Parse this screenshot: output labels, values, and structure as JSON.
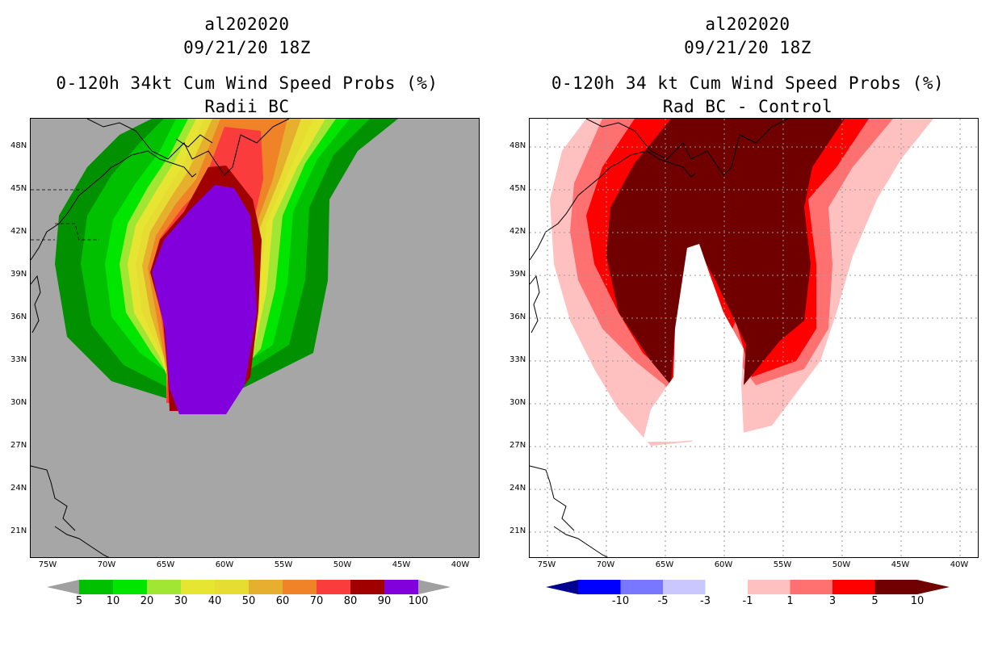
{
  "left_panel": {
    "storm_id": "al202020",
    "datetime": "09/21/20 18Z",
    "title": "0-120h 34kt Cum Wind Speed Probs (%)",
    "subtitle": "Radii BC",
    "colorbar": {
      "labels": [
        "5",
        "10",
        "20",
        "30",
        "40",
        "50",
        "60",
        "70",
        "80",
        "90",
        "100"
      ],
      "colors": [
        "#009000",
        "#00c000",
        "#00e600",
        "#a0e632",
        "#e6e632",
        "#e6dc32",
        "#e6af2d",
        "#f08228",
        "#fa3c3c",
        "#a00000",
        "#8200dc"
      ],
      "end_color": "#a0a0a0",
      "background_color": "#a6a6a6"
    }
  },
  "right_panel": {
    "storm_id": "al202020",
    "datetime": "09/21/20 18Z",
    "title": "0-120h 34 kt Cum Wind Speed Probs (%)",
    "subtitle": "Rad BC - Control",
    "colorbar": {
      "labels": [
        "-10",
        "-5",
        "-3",
        "-1",
        "1",
        "3",
        "5",
        "10"
      ],
      "colors": [
        "#0000b4",
        "#0000ff",
        "#7777ff",
        "#c8c8ff",
        "#ffffff",
        "#ffc0c0",
        "#ff7070",
        "#ff0000"
      ],
      "low_end_color": "#000090",
      "high_end_color": "#700000"
    }
  },
  "axes": {
    "lat_labels": [
      "48N",
      "45N",
      "42N",
      "39N",
      "36N",
      "33N",
      "30N",
      "27N",
      "24N",
      "21N"
    ],
    "lon_labels": [
      "75W",
      "70W",
      "65W",
      "60W",
      "55W",
      "50W",
      "45W",
      "40W"
    ]
  }
}
